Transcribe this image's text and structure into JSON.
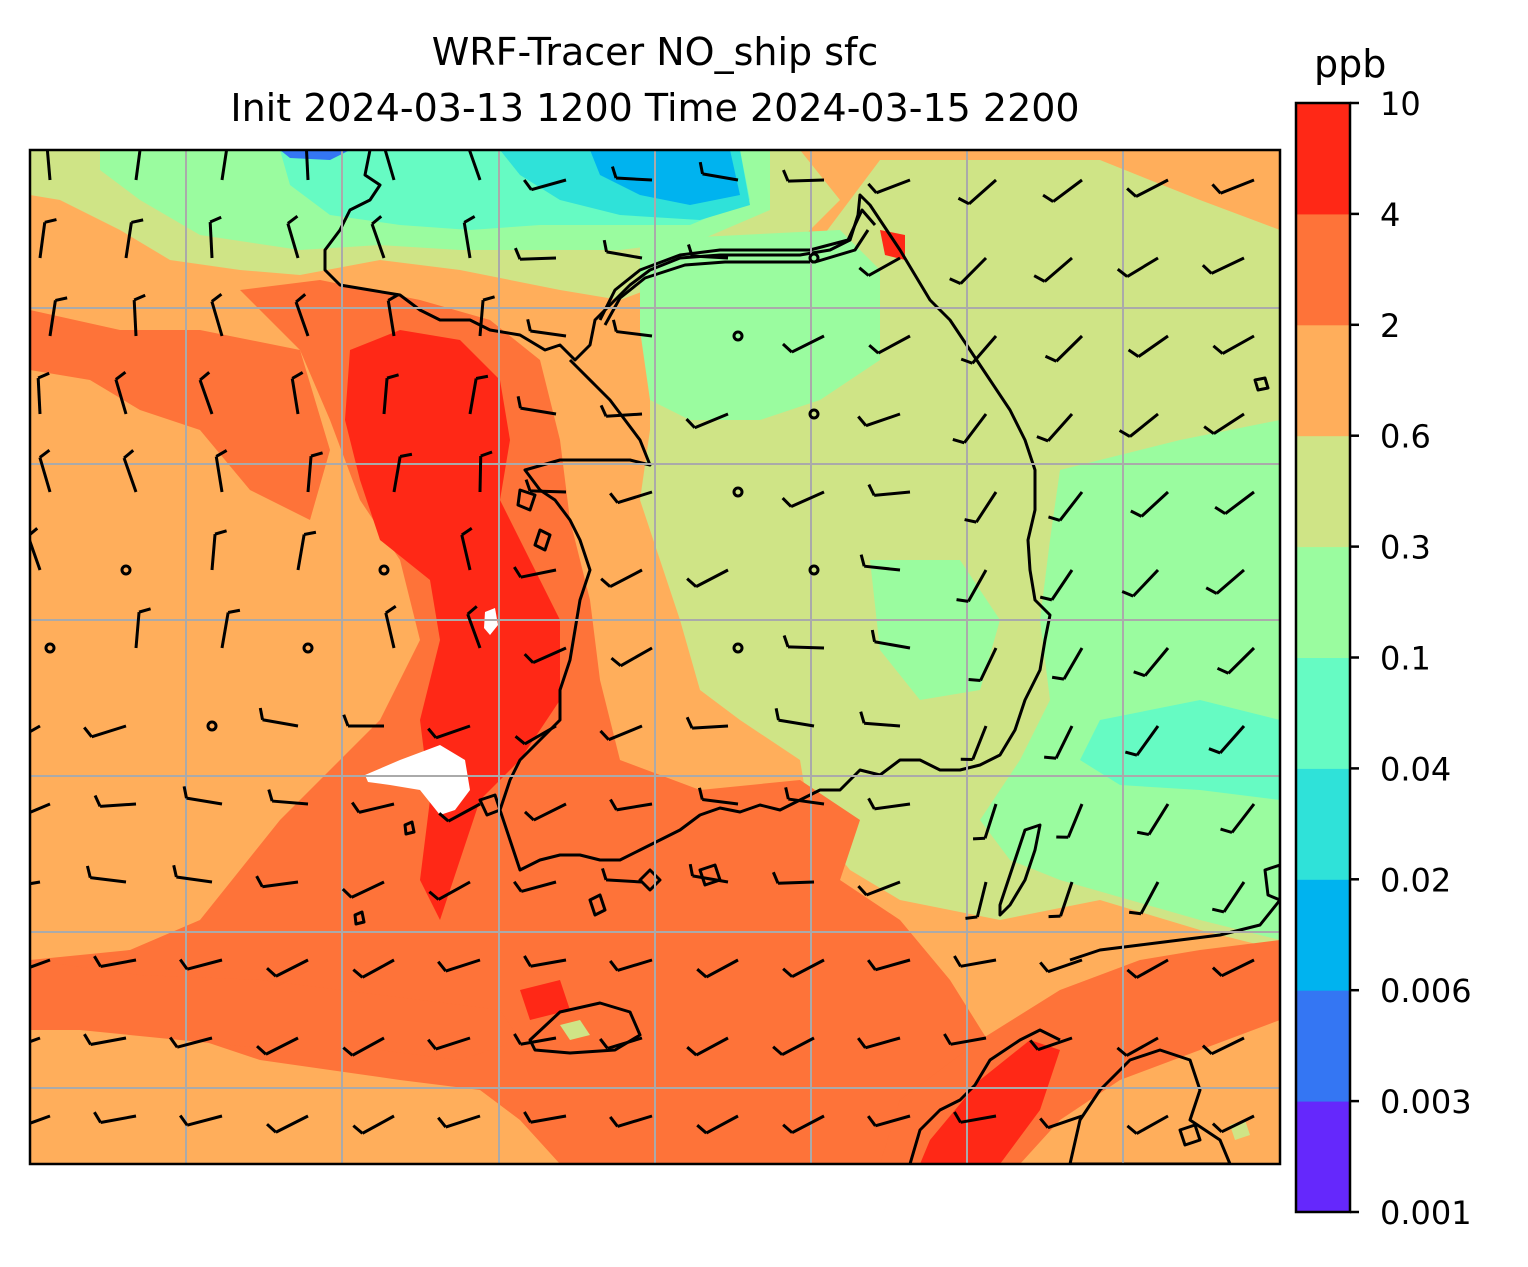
{
  "title": {
    "line1": "WRF-Tracer NO_ship sfc",
    "line2": "Init 2024-03-13 1200 Time 2024-03-15 2200"
  },
  "colorbar": {
    "unit": "ppb",
    "levels": [
      "0.001",
      "0.003",
      "0.006",
      "0.02",
      "0.04",
      "0.1",
      "0.3",
      "0.6",
      "2",
      "4",
      "10"
    ],
    "colors": [
      "#6528fc",
      "#3476f3",
      "#00b3ef",
      "#2fe2d9",
      "#66fbc3",
      "#9afc9f",
      "#cfe486",
      "#ffae5b",
      "#fe7339",
      "#ff2816"
    ]
  },
  "map": {
    "variable": "NO_ship",
    "level": "sfc",
    "grid_color": "#aaaaaa",
    "missing_color": "#ffffff",
    "coastline_color": "#000000",
    "wind_barb_color": "#000000"
  }
}
